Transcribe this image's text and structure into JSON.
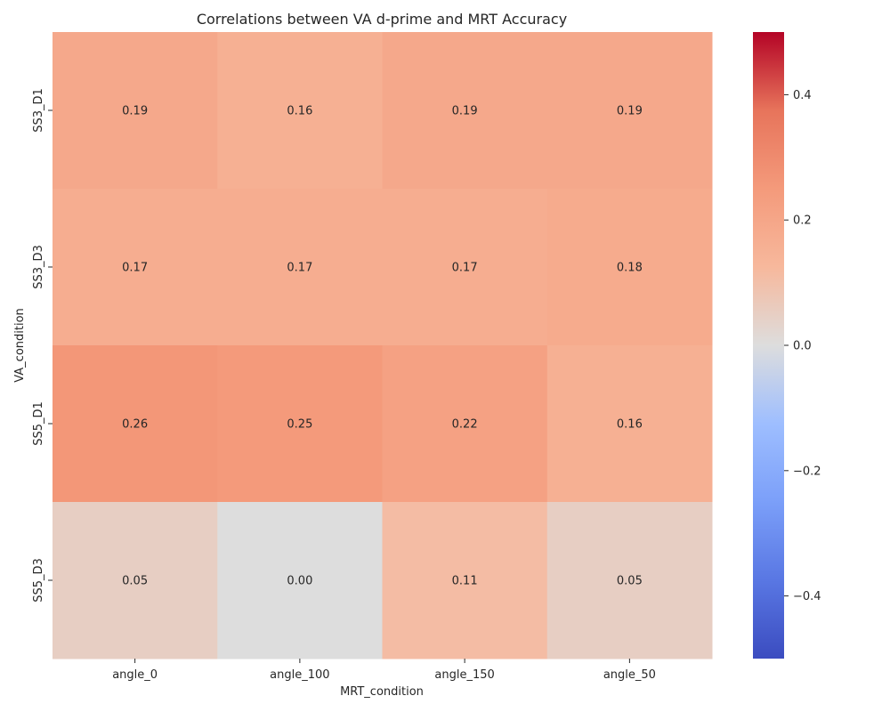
{
  "chart_data": {
    "type": "heatmap",
    "title": "Correlations between VA d-prime and MRT Accuracy",
    "xlabel": "MRT_condition",
    "ylabel": "VA_condition",
    "x_categories": [
      "angle_0",
      "angle_100",
      "angle_150",
      "angle_50"
    ],
    "y_categories": [
      "SS3_D1",
      "SS3_D3",
      "SS5_D1",
      "SS5_D3"
    ],
    "values": [
      [
        0.19,
        0.16,
        0.19,
        0.19
      ],
      [
        0.17,
        0.17,
        0.17,
        0.18
      ],
      [
        0.26,
        0.25,
        0.22,
        0.16
      ],
      [
        0.05,
        0.0,
        0.11,
        0.05
      ]
    ],
    "value_labels": [
      [
        "0.19",
        "0.16",
        "0.19",
        "0.19"
      ],
      [
        "0.17",
        "0.17",
        "0.17",
        "0.18"
      ],
      [
        "0.26",
        "0.25",
        "0.22",
        "0.16"
      ],
      [
        "0.05",
        "0.00",
        "0.11",
        "0.05"
      ]
    ],
    "colormap": "coolwarm",
    "vmin": -0.5,
    "vmax": 0.5,
    "colorbar_ticks": [
      0.4,
      0.2,
      0.0,
      -0.2,
      -0.4
    ],
    "colorbar_tick_labels": [
      "0.4",
      "0.2",
      "0.0",
      "−0.2",
      "−0.4"
    ]
  }
}
